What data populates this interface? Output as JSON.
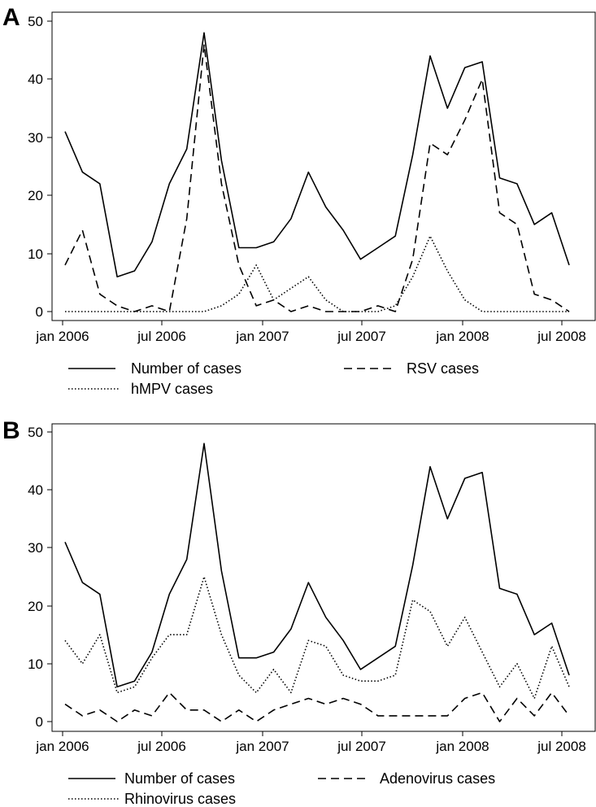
{
  "chart_data": [
    {
      "panel": "A",
      "type": "line",
      "x": [
        "2006-01",
        "2006-02",
        "2006-03",
        "2006-04",
        "2006-05",
        "2006-06",
        "2006-07",
        "2006-08",
        "2006-09",
        "2006-10",
        "2006-11",
        "2006-12",
        "2007-01",
        "2007-02",
        "2007-03",
        "2007-04",
        "2007-05",
        "2007-06",
        "2007-07",
        "2007-08",
        "2007-09",
        "2007-10",
        "2007-11",
        "2007-12",
        "2008-01",
        "2008-02",
        "2008-03",
        "2008-04",
        "2008-05",
        "2008-06"
      ],
      "xticks": [
        "jan 2006",
        "jul 2006",
        "jan 2007",
        "jul 2007",
        "jan 2008",
        "jul 2008"
      ],
      "yticks": [
        "0",
        "10",
        "20",
        "30",
        "40",
        "50"
      ],
      "ylim": [
        0,
        50
      ],
      "series": [
        {
          "name": "Number of cases",
          "style": "solid",
          "values": [
            31,
            24,
            22,
            6,
            7,
            12,
            22,
            28,
            48,
            26,
            11,
            11,
            12,
            16,
            24,
            18,
            14,
            9,
            11,
            13,
            27,
            44,
            35,
            42,
            43,
            23,
            22,
            15,
            17,
            8
          ]
        },
        {
          "name": "RSV cases",
          "style": "dashed",
          "values": [
            8,
            14,
            3,
            1,
            0,
            1,
            0,
            16,
            46,
            22,
            8,
            1,
            2,
            0,
            1,
            0,
            0,
            0,
            1,
            0,
            9,
            29,
            27,
            33,
            40,
            17,
            15,
            3,
            2,
            0
          ]
        },
        {
          "name": "hMPV cases",
          "style": "dotted",
          "values": [
            0,
            0,
            0,
            0,
            0,
            0,
            0,
            0,
            0,
            1,
            3,
            8,
            2,
            4,
            6,
            2,
            0,
            0,
            0,
            1,
            6,
            13,
            7,
            2,
            0,
            0,
            0,
            0,
            0,
            0
          ]
        }
      ],
      "legend": [
        "Number of cases",
        "RSV cases",
        "hMPV cases"
      ]
    },
    {
      "panel": "B",
      "type": "line",
      "x": [
        "2006-01",
        "2006-02",
        "2006-03",
        "2006-04",
        "2006-05",
        "2006-06",
        "2006-07",
        "2006-08",
        "2006-09",
        "2006-10",
        "2006-11",
        "2006-12",
        "2007-01",
        "2007-02",
        "2007-03",
        "2007-04",
        "2007-05",
        "2007-06",
        "2007-07",
        "2007-08",
        "2007-09",
        "2007-10",
        "2007-11",
        "2007-12",
        "2008-01",
        "2008-02",
        "2008-03",
        "2008-04",
        "2008-05",
        "2008-06"
      ],
      "xticks": [
        "jan 2006",
        "jul 2006",
        "jan 2007",
        "jul 2007",
        "jan 2008",
        "jul 2008"
      ],
      "yticks": [
        "0",
        "10",
        "20",
        "30",
        "40",
        "50"
      ],
      "ylim": [
        0,
        50
      ],
      "series": [
        {
          "name": "Number of cases",
          "style": "solid",
          "values": [
            31,
            24,
            22,
            6,
            7,
            12,
            22,
            28,
            48,
            26,
            11,
            11,
            12,
            16,
            24,
            18,
            14,
            9,
            11,
            13,
            27,
            44,
            35,
            42,
            43,
            23,
            22,
            15,
            17,
            8
          ]
        },
        {
          "name": "Adenovirus cases",
          "style": "dashed",
          "values": [
            3,
            1,
            2,
            0,
            2,
            1,
            5,
            2,
            2,
            0,
            2,
            0,
            2,
            3,
            4,
            3,
            4,
            3,
            1,
            1,
            1,
            1,
            1,
            4,
            5,
            0,
            4,
            1,
            5,
            1
          ]
        },
        {
          "name": "Rhinovirus cases",
          "style": "dotted",
          "values": [
            14,
            10,
            15,
            5,
            6,
            11,
            15,
            15,
            25,
            15,
            8,
            5,
            9,
            5,
            14,
            13,
            8,
            7,
            7,
            8,
            21,
            19,
            13,
            18,
            12,
            6,
            10,
            4,
            13,
            6
          ]
        }
      ],
      "legend": [
        "Number of cases",
        "Adenovirus cases",
        "Rhinovirus cases"
      ]
    }
  ]
}
